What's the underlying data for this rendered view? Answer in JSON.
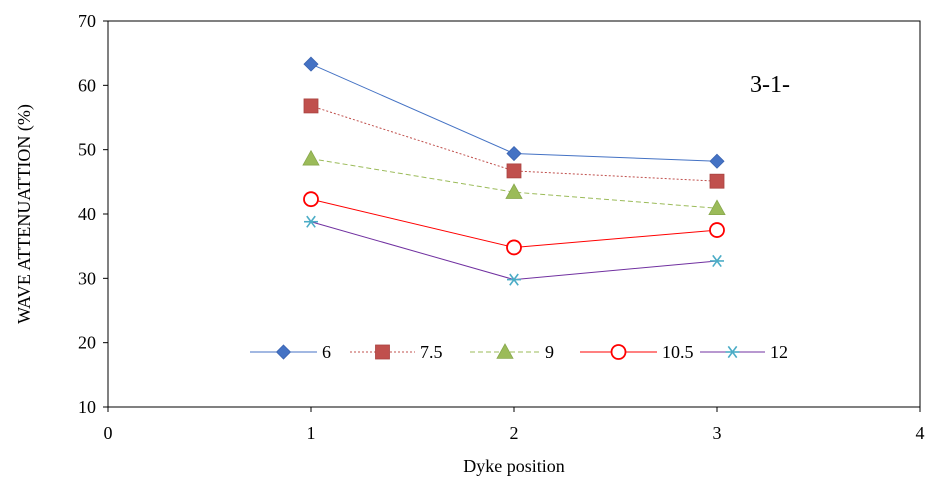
{
  "chart_data": {
    "type": "line",
    "title": "",
    "annotation": "3-1-",
    "xlabel": "Dyke position",
    "ylabel": "WAVE ATTENUATTION (%)",
    "xlim": [
      0,
      4
    ],
    "ylim": [
      10,
      70
    ],
    "xticks": [
      0,
      1,
      2,
      3,
      4
    ],
    "yticks": [
      10,
      20,
      30,
      40,
      50,
      60,
      70
    ],
    "grid": false,
    "legend_position": "inside-bottom",
    "x": [
      1,
      2,
      3
    ],
    "series": [
      {
        "name": "6",
        "values": [
          63.3,
          49.4,
          48.2
        ],
        "color": "#4472C4",
        "marker": "diamond",
        "dash": "solid"
      },
      {
        "name": "7.5",
        "values": [
          56.8,
          46.7,
          45.1
        ],
        "color": "#C0504D",
        "marker": "square",
        "dash": "dotted"
      },
      {
        "name": "9",
        "values": [
          48.6,
          43.4,
          40.9
        ],
        "color": "#9BBB59",
        "marker": "triangle",
        "dash": "dashed"
      },
      {
        "name": "10.5",
        "values": [
          42.3,
          34.8,
          37.5
        ],
        "color": "#FF0000",
        "marker": "circle",
        "dash": "solid"
      },
      {
        "name": "12",
        "values": [
          38.8,
          29.8,
          32.7
        ],
        "color": "#4BACC6",
        "marker": "asterisk",
        "dash": "solid",
        "line_color": "#7030A0"
      }
    ]
  }
}
